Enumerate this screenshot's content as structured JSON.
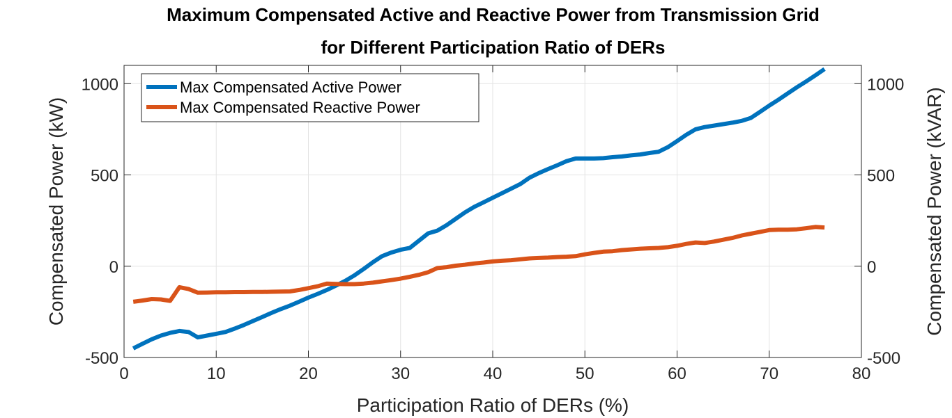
{
  "chart_data": {
    "type": "line",
    "title": [
      "Maximum Compensated Active and Reactive Power from Transmission Grid",
      "for Different Participation Ratio of DERs"
    ],
    "xlabel": "Participation Ratio of DERs (%)",
    "ylabel_left": "Compensated Power (kW)",
    "ylabel_right": "Compensated Power (kVAR)",
    "xlim": [
      0,
      80
    ],
    "ylim": [
      -500,
      1100
    ],
    "x_ticks": [
      0,
      10,
      20,
      30,
      40,
      50,
      60,
      70,
      80
    ],
    "y_ticks": [
      -500,
      0,
      500,
      1000
    ],
    "grid": true,
    "legend_position": "top-left",
    "series": [
      {
        "name": "Max Compensated Active Power",
        "color": "#0072BD",
        "x": [
          1,
          2,
          3,
          4,
          5,
          6,
          7,
          8,
          9,
          10,
          11,
          12,
          13,
          14,
          15,
          16,
          17,
          18,
          19,
          20,
          21,
          22,
          23,
          24,
          25,
          26,
          27,
          28,
          29,
          30,
          31,
          32,
          33,
          34,
          35,
          36,
          37,
          38,
          39,
          40,
          41,
          42,
          43,
          44,
          45,
          46,
          47,
          48,
          49,
          50,
          51,
          52,
          53,
          54,
          55,
          56,
          57,
          58,
          59,
          60,
          61,
          62,
          63,
          64,
          65,
          66,
          67,
          68,
          69,
          70,
          71,
          72,
          73,
          74,
          75,
          76
        ],
        "y": [
          -450,
          -425,
          -400,
          -380,
          -365,
          -355,
          -360,
          -390,
          -380,
          -370,
          -360,
          -342,
          -322,
          -300,
          -278,
          -256,
          -235,
          -216,
          -194,
          -172,
          -152,
          -130,
          -106,
          -80,
          -50,
          -15,
          22,
          55,
          75,
          90,
          100,
          140,
          180,
          195,
          225,
          260,
          295,
          325,
          350,
          375,
          400,
          425,
          450,
          485,
          510,
          532,
          553,
          575,
          590,
          590,
          590,
          592,
          597,
          601,
          607,
          612,
          620,
          627,
          652,
          685,
          720,
          750,
          762,
          770,
          778,
          786,
          796,
          812,
          845,
          880,
          912,
          946,
          980,
          1012,
          1045,
          1080
        ]
      },
      {
        "name": "Max Compensated Reactive Power",
        "color": "#D95319",
        "x": [
          1,
          2,
          3,
          4,
          5,
          6,
          7,
          8,
          9,
          10,
          11,
          12,
          13,
          14,
          15,
          16,
          17,
          18,
          19,
          20,
          21,
          22,
          23,
          24,
          25,
          26,
          27,
          28,
          29,
          30,
          31,
          32,
          33,
          34,
          35,
          36,
          37,
          38,
          39,
          40,
          41,
          42,
          43,
          44,
          45,
          46,
          47,
          48,
          49,
          50,
          51,
          52,
          53,
          54,
          55,
          56,
          57,
          58,
          59,
          60,
          61,
          62,
          63,
          64,
          65,
          66,
          67,
          68,
          69,
          70,
          71,
          72,
          73,
          74,
          75,
          76
        ],
        "y": [
          -195,
          -188,
          -180,
          -182,
          -190,
          -115,
          -125,
          -145,
          -144,
          -143,
          -143,
          -142,
          -142,
          -141,
          -141,
          -140,
          -139,
          -138,
          -130,
          -120,
          -110,
          -95,
          -97,
          -98,
          -98,
          -95,
          -90,
          -83,
          -76,
          -68,
          -58,
          -47,
          -33,
          -10,
          -5,
          3,
          8,
          15,
          20,
          26,
          30,
          33,
          38,
          43,
          45,
          47,
          50,
          52,
          55,
          65,
          73,
          80,
          82,
          88,
          92,
          96,
          98,
          100,
          104,
          112,
          122,
          130,
          127,
          135,
          145,
          155,
          168,
          178,
          188,
          198,
          200,
          200,
          202,
          208,
          215,
          212
        ]
      }
    ]
  }
}
